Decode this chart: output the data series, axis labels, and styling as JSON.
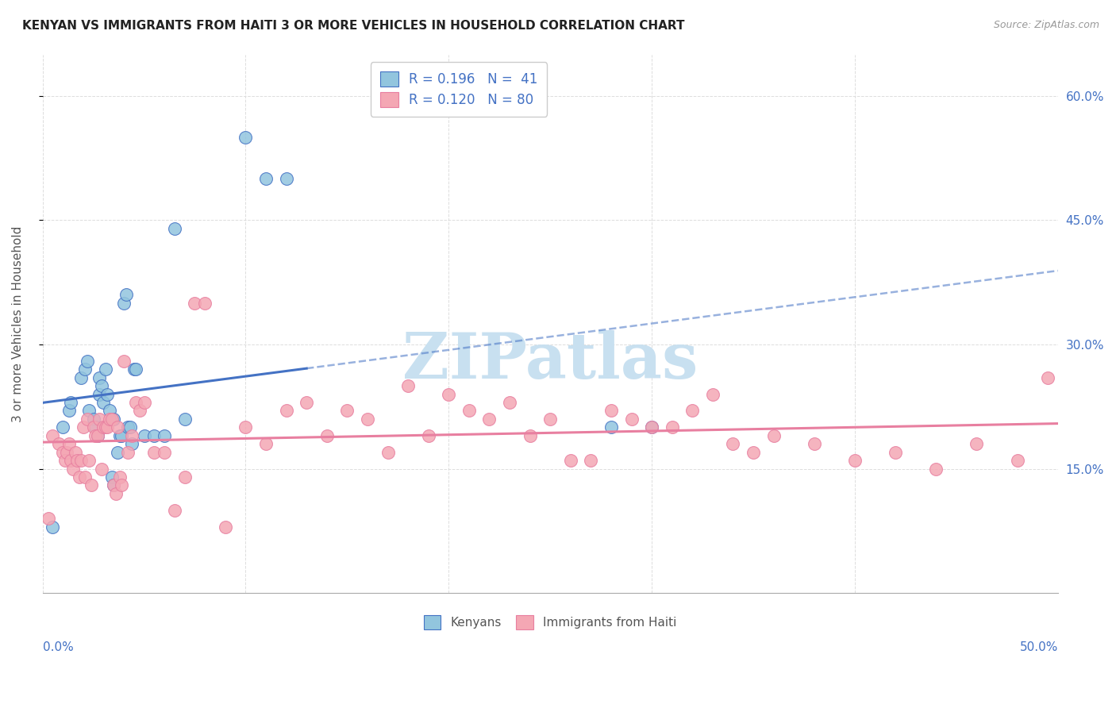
{
  "title": "KENYAN VS IMMIGRANTS FROM HAITI 3 OR MORE VEHICLES IN HOUSEHOLD CORRELATION CHART",
  "source": "Source: ZipAtlas.com",
  "ylabel": "3 or more Vehicles in Household",
  "y_tick_labels": [
    "15.0%",
    "30.0%",
    "45.0%",
    "60.0%"
  ],
  "y_tick_values": [
    0.15,
    0.3,
    0.45,
    0.6
  ],
  "x_range": [
    0.0,
    0.5
  ],
  "y_range": [
    0.0,
    0.65
  ],
  "color_kenyan": "#92C5DE",
  "color_haiti": "#F4A7B4",
  "color_kenyan_line": "#4472C4",
  "color_haiti_line": "#E87FA0",
  "background": "#FFFFFF",
  "kenyan_x": [
    0.005,
    0.01,
    0.013,
    0.014,
    0.019,
    0.021,
    0.022,
    0.023,
    0.025,
    0.026,
    0.027,
    0.028,
    0.028,
    0.029,
    0.03,
    0.031,
    0.032,
    0.033,
    0.034,
    0.035,
    0.035,
    0.037,
    0.038,
    0.039,
    0.04,
    0.041,
    0.042,
    0.043,
    0.044,
    0.045,
    0.046,
    0.05,
    0.055,
    0.06,
    0.065,
    0.07,
    0.1,
    0.11,
    0.12,
    0.28,
    0.3
  ],
  "kenyan_y": [
    0.08,
    0.2,
    0.22,
    0.23,
    0.26,
    0.27,
    0.28,
    0.22,
    0.21,
    0.2,
    0.19,
    0.26,
    0.24,
    0.25,
    0.23,
    0.27,
    0.24,
    0.22,
    0.14,
    0.13,
    0.21,
    0.17,
    0.19,
    0.19,
    0.35,
    0.36,
    0.2,
    0.2,
    0.18,
    0.27,
    0.27,
    0.19,
    0.19,
    0.19,
    0.44,
    0.21,
    0.55,
    0.5,
    0.5,
    0.2,
    0.2
  ],
  "haiti_x": [
    0.003,
    0.005,
    0.008,
    0.01,
    0.011,
    0.012,
    0.013,
    0.014,
    0.015,
    0.016,
    0.017,
    0.018,
    0.019,
    0.02,
    0.021,
    0.022,
    0.023,
    0.024,
    0.025,
    0.026,
    0.027,
    0.028,
    0.029,
    0.03,
    0.031,
    0.032,
    0.033,
    0.034,
    0.035,
    0.036,
    0.037,
    0.038,
    0.039,
    0.04,
    0.042,
    0.044,
    0.046,
    0.048,
    0.05,
    0.055,
    0.06,
    0.065,
    0.07,
    0.075,
    0.08,
    0.09,
    0.1,
    0.11,
    0.12,
    0.13,
    0.14,
    0.15,
    0.16,
    0.17,
    0.18,
    0.19,
    0.2,
    0.21,
    0.22,
    0.23,
    0.24,
    0.25,
    0.26,
    0.27,
    0.28,
    0.29,
    0.3,
    0.31,
    0.32,
    0.33,
    0.34,
    0.35,
    0.36,
    0.38,
    0.4,
    0.42,
    0.44,
    0.46,
    0.48,
    0.495
  ],
  "haiti_y": [
    0.09,
    0.19,
    0.18,
    0.17,
    0.16,
    0.17,
    0.18,
    0.16,
    0.15,
    0.17,
    0.16,
    0.14,
    0.16,
    0.2,
    0.14,
    0.21,
    0.16,
    0.13,
    0.2,
    0.19,
    0.19,
    0.21,
    0.15,
    0.2,
    0.2,
    0.2,
    0.21,
    0.21,
    0.13,
    0.12,
    0.2,
    0.14,
    0.13,
    0.28,
    0.17,
    0.19,
    0.23,
    0.22,
    0.23,
    0.17,
    0.17,
    0.1,
    0.14,
    0.35,
    0.35,
    0.08,
    0.2,
    0.18,
    0.22,
    0.23,
    0.19,
    0.22,
    0.21,
    0.17,
    0.25,
    0.19,
    0.24,
    0.22,
    0.21,
    0.23,
    0.19,
    0.21,
    0.16,
    0.16,
    0.22,
    0.21,
    0.2,
    0.2,
    0.22,
    0.24,
    0.18,
    0.17,
    0.19,
    0.18,
    0.16,
    0.17,
    0.15,
    0.18,
    0.16,
    0.26
  ],
  "watermark": "ZIPatlas",
  "watermark_color": "#C8E0F0",
  "grid_color": "#DDDDDD"
}
